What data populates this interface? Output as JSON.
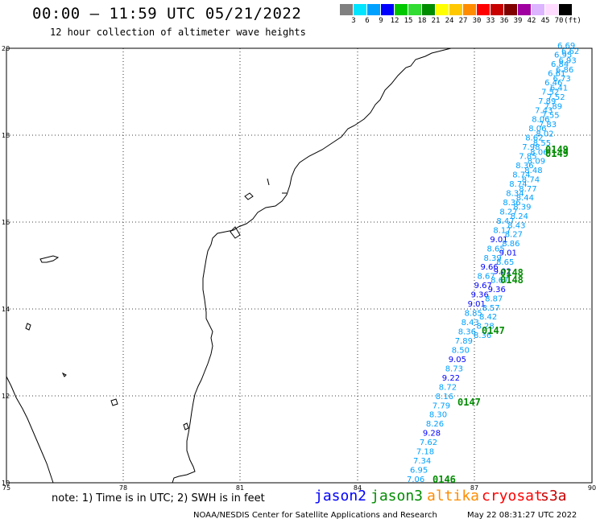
{
  "header": {
    "title": "00:00 – 11:59 UTC 05/21/2022",
    "subtitle": "12 hour collection of altimeter wave heights"
  },
  "legend": {
    "colors": [
      "#808080",
      "#00e5ff",
      "#00a0ff",
      "#0000ff",
      "#00c800",
      "#32dc32",
      "#008c00",
      "#ffff00",
      "#ffc800",
      "#ff8c00",
      "#ff0000",
      "#c80000",
      "#800000",
      "#a000a0",
      "#dcb4ff",
      "#ffdcff",
      "#000000"
    ],
    "labels": [
      "3",
      "6",
      "9",
      "12",
      "15",
      "18",
      "21",
      "24",
      "27",
      "30",
      "33",
      "36",
      "39",
      "42",
      "45",
      "70",
      "(ft)"
    ]
  },
  "axes": {
    "lat_labels": [
      "20",
      "18",
      "16",
      "14",
      "12",
      "10"
    ],
    "lon_labels": [
      "75",
      "78",
      "81",
      "84",
      "87",
      "90"
    ]
  },
  "tracks": {
    "pass_labels": [
      "0149",
      "0149",
      "0148",
      "0148",
      "0147",
      "0147",
      "0146"
    ],
    "track1_values": [
      "6.69",
      "6.95",
      "6.84",
      "6.61",
      "6.46",
      "7.52",
      "7.89",
      "7.43",
      "8.06",
      "8.06",
      "8.62",
      "7.98",
      "7.85",
      "8.36",
      "8.74",
      "8.74",
      "8.34",
      "8.36",
      "8.27",
      "8.47",
      "8.17",
      "9.01",
      "8.65",
      "8.39",
      "9.66",
      "8.67",
      "9.67",
      "9.36",
      "9.01",
      "8.85",
      "8.43",
      "8.36",
      "7.89",
      "8.50",
      "9.05",
      "8.73",
      "9.22",
      "8.72",
      "8.16",
      "7.79",
      "8.30",
      "8.26",
      "9.28",
      "7.62",
      "7.18",
      "7.34",
      "6.95",
      "7.06"
    ],
    "track2_values": [
      "6.62",
      "6.93",
      "6.86",
      "6.73",
      "6.41",
      "7.52",
      "7.89",
      "7.55",
      "7.83",
      "8.02",
      "8.55",
      "8.06",
      "8.09",
      "8.48",
      "8.74",
      "8.77",
      "8.44",
      "8.39",
      "8.24",
      "8.43",
      "8.27",
      "8.86",
      "9.01",
      "8.65",
      "9.02",
      "8.67",
      "9.36",
      "8.87",
      "8.57",
      "8.42",
      "8.28",
      "8.36"
    ]
  },
  "footer": {
    "note": "note: 1) Time is in UTC; 2) SWH is in feet",
    "satellites": [
      {
        "name": "jason2",
        "color": "#0000ff"
      },
      {
        "name": "jason3",
        "color": "#008c00"
      },
      {
        "name": "altika",
        "color": "#ff8c00"
      },
      {
        "name": "cryosat",
        "color": "#ff0000"
      },
      {
        "name": "s3a",
        "color": "#c80000"
      }
    ],
    "credit": "NOAA/NESDIS Center for Satellite Applications and Research",
    "timestamp": "May 22 08:31:27 UTC 2022"
  }
}
